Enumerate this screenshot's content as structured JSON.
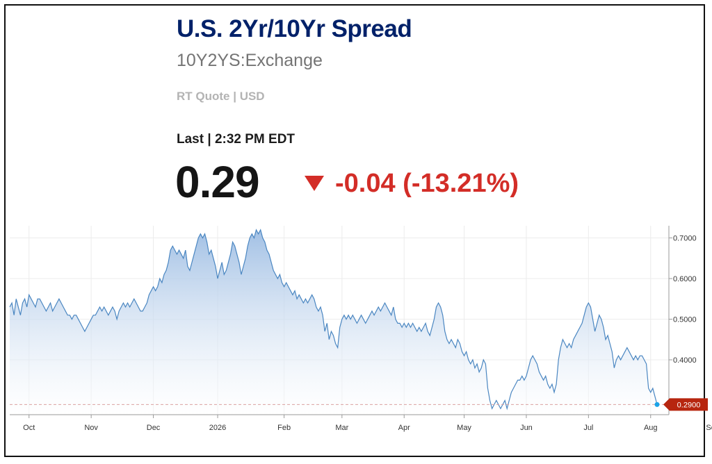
{
  "header": {
    "title": "U.S. 2Yr/10Yr Spread",
    "symbol": "10Y2YS:Exchange",
    "quote_info": "RT Quote | USD",
    "last_label": "Last | 2:32 PM EDT",
    "price": "0.29",
    "change": "-0.04 (-13.21%)",
    "change_direction": "down",
    "change_color": "#d32d27",
    "title_color": "#012169"
  },
  "chart_data": {
    "type": "area",
    "title": "",
    "xlabel": "",
    "ylabel": "",
    "ylim": [
      0.265,
      0.73
    ],
    "yticks": [
      "0.7000",
      "0.6000",
      "0.5000",
      "0.4000"
    ],
    "ytick_values": [
      0.7,
      0.6,
      0.5,
      0.4
    ],
    "x_ticks": [
      "Oct",
      "Nov",
      "Dec",
      "2026",
      "Feb",
      "Mar",
      "Apr",
      "May",
      "Jun",
      "Jul",
      "Aug",
      "Sep"
    ],
    "x_tick_index": [
      9,
      38,
      67,
      97,
      128,
      155,
      184,
      212,
      241,
      270,
      299,
      328
    ],
    "grid": true,
    "line_color": "#4a86c1",
    "fill_color": "#a9c6e6",
    "current_value_label": "0.2900",
    "current_value": 0.29,
    "values": [
      0.53,
      0.54,
      0.51,
      0.55,
      0.53,
      0.51,
      0.54,
      0.55,
      0.53,
      0.56,
      0.55,
      0.54,
      0.53,
      0.55,
      0.55,
      0.54,
      0.53,
      0.52,
      0.53,
      0.54,
      0.52,
      0.53,
      0.54,
      0.55,
      0.54,
      0.53,
      0.52,
      0.51,
      0.51,
      0.5,
      0.51,
      0.51,
      0.5,
      0.49,
      0.48,
      0.47,
      0.48,
      0.49,
      0.5,
      0.51,
      0.51,
      0.52,
      0.53,
      0.52,
      0.53,
      0.52,
      0.51,
      0.52,
      0.53,
      0.52,
      0.5,
      0.52,
      0.53,
      0.54,
      0.53,
      0.54,
      0.53,
      0.54,
      0.55,
      0.54,
      0.53,
      0.52,
      0.52,
      0.53,
      0.54,
      0.56,
      0.57,
      0.58,
      0.57,
      0.58,
      0.6,
      0.59,
      0.61,
      0.62,
      0.64,
      0.67,
      0.68,
      0.67,
      0.66,
      0.67,
      0.66,
      0.65,
      0.67,
      0.63,
      0.62,
      0.64,
      0.66,
      0.68,
      0.7,
      0.71,
      0.7,
      0.71,
      0.69,
      0.66,
      0.67,
      0.65,
      0.63,
      0.6,
      0.62,
      0.64,
      0.61,
      0.62,
      0.64,
      0.66,
      0.69,
      0.68,
      0.66,
      0.64,
      0.61,
      0.63,
      0.65,
      0.68,
      0.7,
      0.71,
      0.7,
      0.72,
      0.71,
      0.72,
      0.7,
      0.69,
      0.67,
      0.66,
      0.64,
      0.62,
      0.61,
      0.6,
      0.61,
      0.59,
      0.58,
      0.59,
      0.58,
      0.57,
      0.56,
      0.57,
      0.55,
      0.56,
      0.55,
      0.54,
      0.55,
      0.54,
      0.55,
      0.56,
      0.55,
      0.53,
      0.52,
      0.53,
      0.51,
      0.47,
      0.49,
      0.45,
      0.47,
      0.46,
      0.44,
      0.43,
      0.48,
      0.5,
      0.51,
      0.5,
      0.51,
      0.5,
      0.51,
      0.5,
      0.49,
      0.5,
      0.51,
      0.5,
      0.49,
      0.5,
      0.51,
      0.52,
      0.51,
      0.52,
      0.53,
      0.52,
      0.53,
      0.54,
      0.53,
      0.52,
      0.51,
      0.53,
      0.5,
      0.49,
      0.49,
      0.48,
      0.49,
      0.48,
      0.49,
      0.48,
      0.49,
      0.48,
      0.47,
      0.48,
      0.47,
      0.48,
      0.49,
      0.47,
      0.46,
      0.48,
      0.5,
      0.53,
      0.54,
      0.53,
      0.51,
      0.47,
      0.45,
      0.44,
      0.45,
      0.44,
      0.43,
      0.45,
      0.44,
      0.42,
      0.41,
      0.42,
      0.4,
      0.39,
      0.4,
      0.38,
      0.39,
      0.37,
      0.38,
      0.4,
      0.39,
      0.33,
      0.3,
      0.28,
      0.29,
      0.3,
      0.29,
      0.28,
      0.29,
      0.3,
      0.28,
      0.3,
      0.32,
      0.33,
      0.34,
      0.35,
      0.35,
      0.36,
      0.35,
      0.36,
      0.38,
      0.4,
      0.41,
      0.4,
      0.39,
      0.37,
      0.36,
      0.35,
      0.36,
      0.34,
      0.33,
      0.34,
      0.32,
      0.34,
      0.4,
      0.43,
      0.45,
      0.44,
      0.43,
      0.44,
      0.43,
      0.45,
      0.46,
      0.47,
      0.48,
      0.49,
      0.51,
      0.53,
      0.54,
      0.53,
      0.5,
      0.47,
      0.49,
      0.51,
      0.5,
      0.48,
      0.45,
      0.46,
      0.44,
      0.42,
      0.38,
      0.4,
      0.41,
      0.4,
      0.41,
      0.42,
      0.43,
      0.42,
      0.41,
      0.4,
      0.41,
      0.4,
      0.41,
      0.41,
      0.4,
      0.39,
      0.33,
      0.32,
      0.33,
      0.31,
      0.29
    ]
  }
}
